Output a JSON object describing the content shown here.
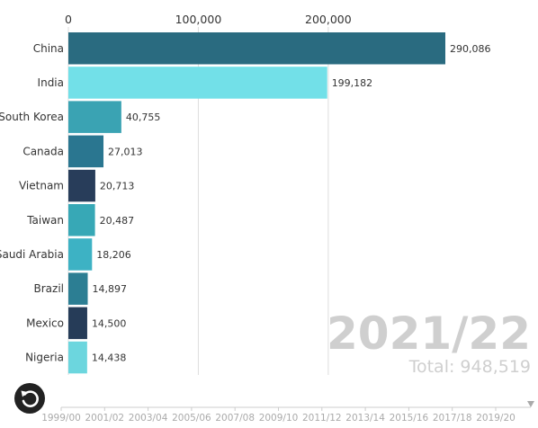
{
  "chart_data": {
    "type": "bar",
    "orientation": "horizontal",
    "categories": [
      "China",
      "India",
      "South Korea",
      "Canada",
      "Vietnam",
      "Taiwan",
      "Saudi Arabia",
      "Brazil",
      "Mexico",
      "Nigeria"
    ],
    "values": [
      290086,
      199182,
      40755,
      27013,
      20713,
      20487,
      18206,
      14897,
      14500,
      14438
    ],
    "value_labels": [
      "290,086",
      "199,182",
      "40,755",
      "27,013",
      "20,713",
      "20,487",
      "18,206",
      "14,897",
      "14,500",
      "14,438"
    ],
    "colors": [
      "#2a6b80",
      "#72e0e8",
      "#3aa3b3",
      "#2a7690",
      "#283d5a",
      "#37a8b6",
      "#3db2c4",
      "#2c7e93",
      "#263c58",
      "#6cd6de"
    ],
    "x_ticks": [
      0,
      100000,
      200000
    ],
    "x_tick_labels": [
      "0",
      "100,000",
      "200,000"
    ],
    "xlim": [
      0,
      290086
    ],
    "grid": true,
    "period_label": "2021/22",
    "total_label": "Total: 948,519",
    "timeline_labels": [
      "1999/00",
      "2001/02",
      "2003/04",
      "2005/06",
      "2007/08",
      "2009/10",
      "2011/12",
      "2013/14",
      "2015/16",
      "2017/18",
      "2019/20"
    ],
    "timeline_position": 1.0
  },
  "controls": {
    "replay_icon": "replay-icon"
  }
}
